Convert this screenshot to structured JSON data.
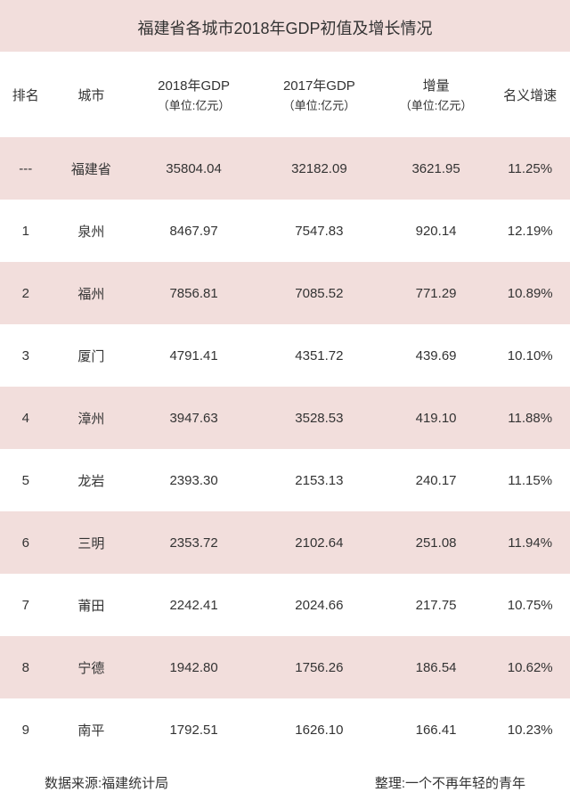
{
  "title": "福建省各城市2018年GDP初值及增长情况",
  "columns": {
    "rank": {
      "label": "排名"
    },
    "city": {
      "label": "城市"
    },
    "gdp2018": {
      "label": "2018年GDP",
      "unit": "（单位:亿元）"
    },
    "gdp2017": {
      "label": "2017年GDP",
      "unit": "（单位:亿元）"
    },
    "increase": {
      "label": "增量",
      "unit": "（单位:亿元）"
    },
    "rate": {
      "label": "名义增速"
    }
  },
  "rows": [
    {
      "rank": "---",
      "city": "福建省",
      "gdp2018": "35804.04",
      "gdp2017": "32182.09",
      "increase": "3621.95",
      "rate": "11.25%"
    },
    {
      "rank": "1",
      "city": "泉州",
      "gdp2018": "8467.97",
      "gdp2017": "7547.83",
      "increase": "920.14",
      "rate": "12.19%"
    },
    {
      "rank": "2",
      "city": "福州",
      "gdp2018": "7856.81",
      "gdp2017": "7085.52",
      "increase": "771.29",
      "rate": "10.89%"
    },
    {
      "rank": "3",
      "city": "厦门",
      "gdp2018": "4791.41",
      "gdp2017": "4351.72",
      "increase": "439.69",
      "rate": "10.10%"
    },
    {
      "rank": "4",
      "city": "漳州",
      "gdp2018": "3947.63",
      "gdp2017": "3528.53",
      "increase": "419.10",
      "rate": "11.88%"
    },
    {
      "rank": "5",
      "city": "龙岩",
      "gdp2018": "2393.30",
      "gdp2017": "2153.13",
      "increase": "240.17",
      "rate": "11.15%"
    },
    {
      "rank": "6",
      "city": "三明",
      "gdp2018": "2353.72",
      "gdp2017": "2102.64",
      "increase": "251.08",
      "rate": "11.94%"
    },
    {
      "rank": "7",
      "city": "莆田",
      "gdp2018": "2242.41",
      "gdp2017": "2024.66",
      "increase": "217.75",
      "rate": "10.75%"
    },
    {
      "rank": "8",
      "city": "宁德",
      "gdp2018": "1942.80",
      "gdp2017": "1756.26",
      "increase": "186.54",
      "rate": "10.62%"
    },
    {
      "rank": "9",
      "city": "南平",
      "gdp2018": "1792.51",
      "gdp2017": "1626.10",
      "increase": "166.41",
      "rate": "10.23%"
    }
  ],
  "footer": {
    "source": "数据来源:福建统计局",
    "editor": "整理:一个不再年轻的青年"
  },
  "style": {
    "alt_row_color": "#f2dedc",
    "plain_row_color": "#ffffff",
    "text_color": "#333333",
    "title_fontsize": 18,
    "header_fontsize": 15,
    "cell_fontsize": 15,
    "footer_fontsize": 15
  }
}
